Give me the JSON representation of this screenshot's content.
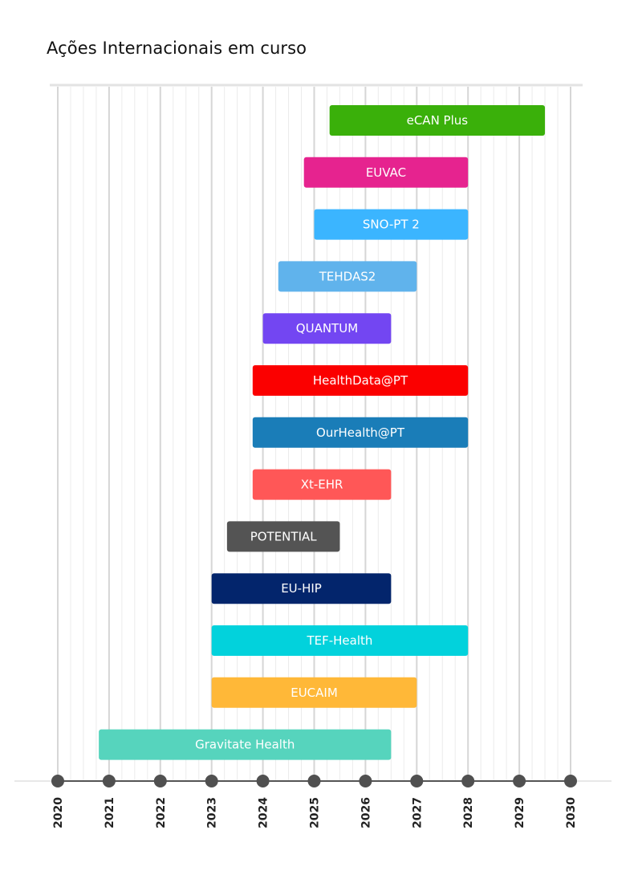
{
  "title": "Ações Internacionais em curso",
  "chart_data": {
    "type": "bar",
    "orientation": "horizontal-timeline",
    "title": "Ações Internacionais em curso",
    "xlabel": "",
    "ylabel": "",
    "xlim": [
      2020,
      2030
    ],
    "x_ticks": [
      "2020",
      "2021",
      "2022",
      "2023",
      "2024",
      "2025",
      "2026",
      "2027",
      "2028",
      "2029",
      "2030"
    ],
    "grid": true,
    "legend": "none",
    "tasks": [
      {
        "label": "eCAN Plus",
        "start": 2025.3,
        "end": 2029.5,
        "color": "#3ab00a"
      },
      {
        "label": "EUVAC",
        "start": 2024.8,
        "end": 2028.0,
        "color": "#e6238f"
      },
      {
        "label": "SNO-PT 2",
        "start": 2025.0,
        "end": 2028.0,
        "color": "#3bb5ff"
      },
      {
        "label": "TEHDAS2",
        "start": 2024.3,
        "end": 2027.0,
        "color": "#60b3ec"
      },
      {
        "label": "QUANTUM",
        "start": 2024.0,
        "end": 2026.5,
        "color": "#7346f2"
      },
      {
        "label": "HealthData@PT",
        "start": 2023.8,
        "end": 2028.0,
        "color": "#fb0000"
      },
      {
        "label": "OurHealth@PT",
        "start": 2023.8,
        "end": 2028.0,
        "color": "#1a7db8"
      },
      {
        "label": "Xt-EHR",
        "start": 2023.8,
        "end": 2026.5,
        "color": "#ff5757"
      },
      {
        "label": "POTENTIAL",
        "start": 2023.3,
        "end": 2025.5,
        "color": "#545454"
      },
      {
        "label": "EU-HIP",
        "start": 2023.0,
        "end": 2026.5,
        "color": "#03256c"
      },
      {
        "label": "TEF-Health",
        "start": 2023.0,
        "end": 2028.0,
        "color": "#02d2dc"
      },
      {
        "label": "EUCAIM",
        "start": 2023.0,
        "end": 2027.0,
        "color": "#ffb838"
      },
      {
        "label": "Gravitate Health",
        "start": 2020.8,
        "end": 2026.5,
        "color": "#56d4bd"
      }
    ]
  }
}
